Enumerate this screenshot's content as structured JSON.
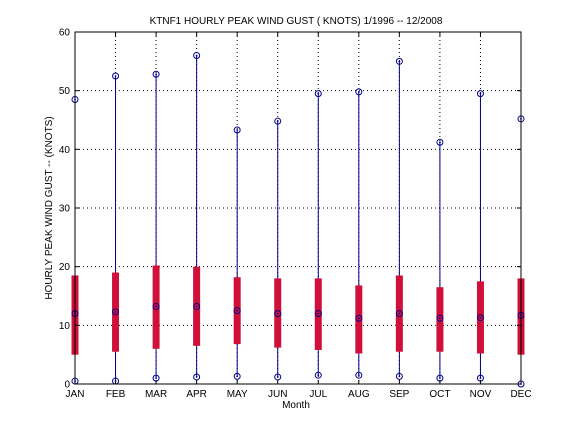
{
  "chart_data": {
    "type": "box",
    "title": "KTNF1  HOURLY PEAK WIND GUST ( KNOTS) 1/1996 -- 12/2008",
    "xlabel": "Month",
    "ylabel": "HOURLY PEAK WIND GUST --  (KNOTS)",
    "ylim": [
      0,
      60
    ],
    "yticks": [
      0,
      10,
      20,
      30,
      40,
      50,
      60
    ],
    "grid": true,
    "categories": [
      "JAN",
      "FEB",
      "MAR",
      "APR",
      "MAY",
      "JUN",
      "JUL",
      "AUG",
      "SEP",
      "OCT",
      "NOV",
      "DEC"
    ],
    "min": [
      0.5,
      0.5,
      1.0,
      1.2,
      1.3,
      1.2,
      1.5,
      1.5,
      1.3,
      1.0,
      1.0,
      0.0
    ],
    "q1": [
      5.0,
      5.5,
      6.0,
      6.5,
      6.8,
      6.2,
      5.8,
      5.2,
      5.5,
      5.5,
      5.2,
      5.0
    ],
    "median": [
      12.0,
      12.3,
      13.2,
      13.2,
      12.5,
      12.0,
      12.0,
      11.2,
      12.0,
      11.2,
      11.3,
      11.7
    ],
    "q3": [
      18.5,
      19.0,
      20.2,
      20.0,
      18.2,
      18.0,
      18.0,
      16.8,
      18.5,
      16.5,
      17.5,
      18.0
    ],
    "max": [
      48.5,
      52.5,
      52.8,
      56.0,
      43.3,
      44.8,
      49.5,
      49.8,
      55.0,
      41.2,
      49.5,
      45.2
    ],
    "colors": {
      "whisker": "#00008b",
      "box": "#d0103a",
      "marker": "#00008b",
      "grid": "#000000"
    }
  }
}
